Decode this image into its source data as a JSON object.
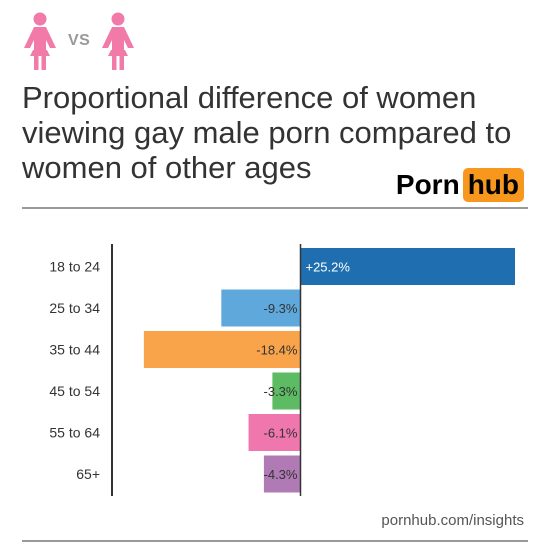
{
  "header": {
    "vs_label": "VS",
    "icon_left": "woman-icon",
    "icon_right": "woman-icon",
    "icon_color": "#f27aa9"
  },
  "title": "Proportional difference of women viewing gay male porn compared to women of other ages",
  "logo": {
    "part1": "Porn",
    "part2": "hub",
    "accent": "#f7971d"
  },
  "source": "pornhub.com/insights",
  "chart_data": {
    "type": "bar",
    "orientation": "horizontal",
    "categories": [
      "18 to 24",
      "25 to 34",
      "35 to 44",
      "45 to 54",
      "55 to 64",
      "65+"
    ],
    "values": [
      25.2,
      -9.3,
      -18.4,
      -3.3,
      -6.1,
      -4.3
    ],
    "value_labels": [
      "+25.2%",
      "-9.3%",
      "-18.4%",
      "-3.3%",
      "-6.1%",
      "-4.3%"
    ],
    "colors": [
      "#1f6fb0",
      "#5fa8dc",
      "#f9a44a",
      "#5dbb63",
      "#ef77ae",
      "#b07ab5"
    ],
    "xlim": [
      -20.5,
      25.2
    ],
    "grid": false
  }
}
